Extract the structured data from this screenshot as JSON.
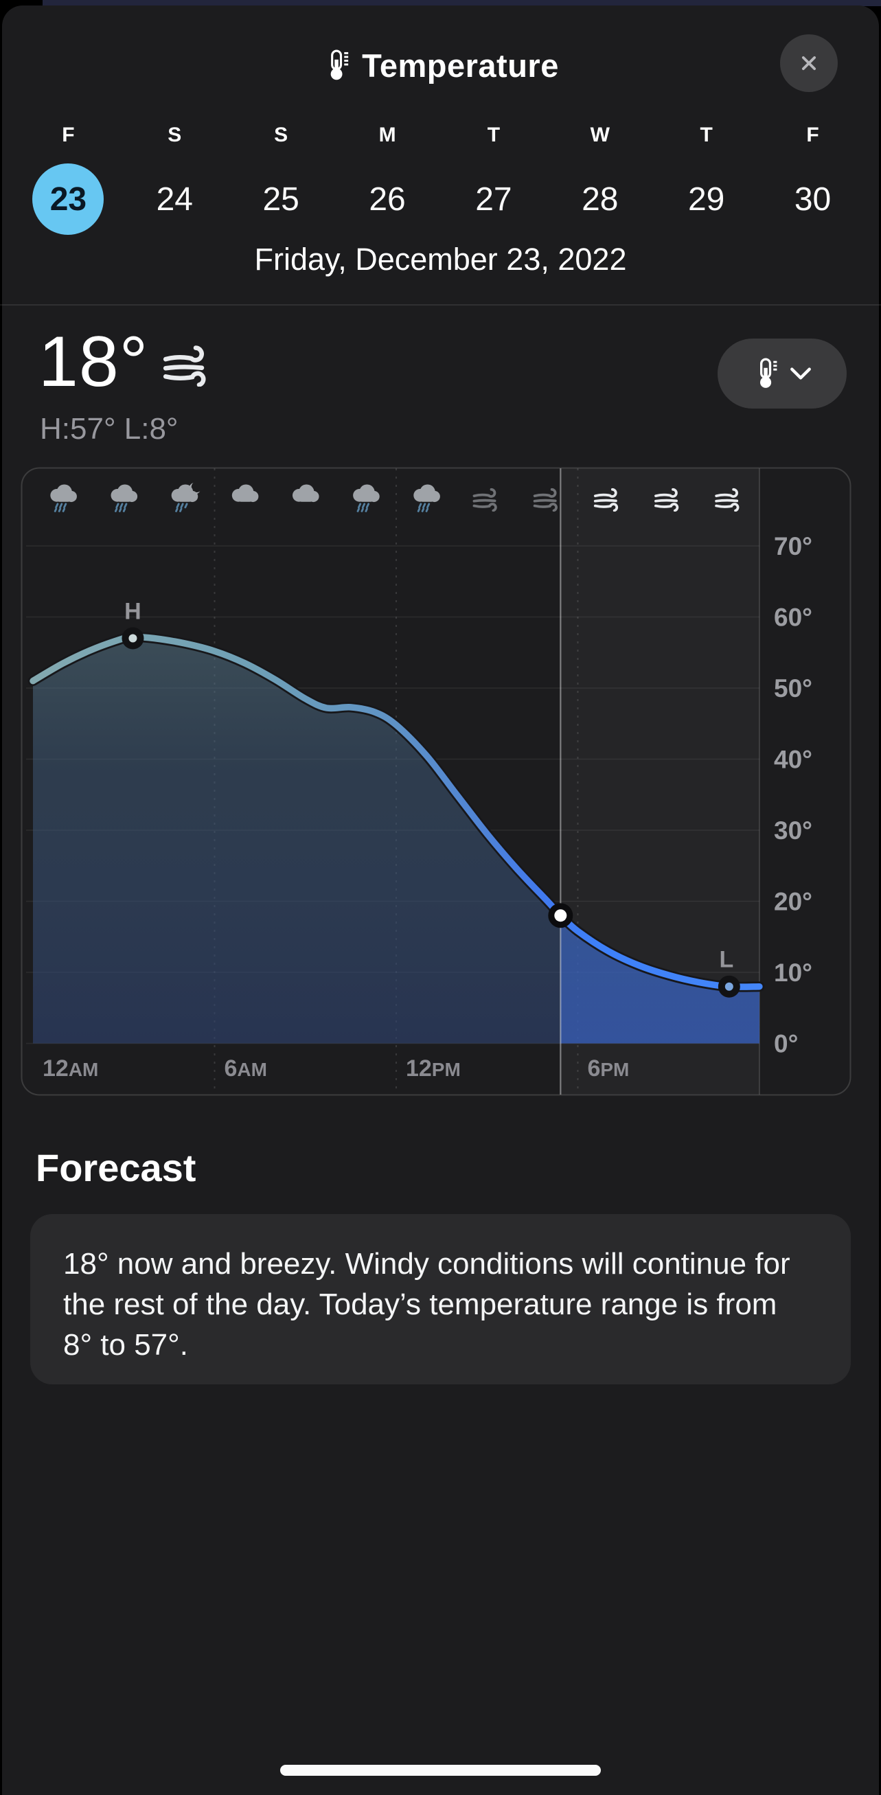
{
  "header": {
    "title": "Temperature"
  },
  "day_picker": {
    "days": [
      {
        "letter": "F",
        "date": "23",
        "selected": true
      },
      {
        "letter": "S",
        "date": "24",
        "selected": false
      },
      {
        "letter": "S",
        "date": "25",
        "selected": false
      },
      {
        "letter": "M",
        "date": "26",
        "selected": false
      },
      {
        "letter": "T",
        "date": "27",
        "selected": false
      },
      {
        "letter": "W",
        "date": "28",
        "selected": false
      },
      {
        "letter": "T",
        "date": "29",
        "selected": false
      },
      {
        "letter": "F",
        "date": "30",
        "selected": false
      }
    ],
    "selected_color": "#67c7f2"
  },
  "selected_date_label": "Friday, December 23, 2022",
  "current": {
    "temperature": "18°",
    "condition_icon": "wind",
    "high_low": "H:57° L:8°"
  },
  "chart_data": {
    "type": "area",
    "xlim_hours": [
      0,
      24
    ],
    "ylim": [
      0,
      70
    ],
    "grid": true,
    "legend_position": "none",
    "y_ticks": [
      {
        "value": 70,
        "label": "70°"
      },
      {
        "value": 60,
        "label": "60°"
      },
      {
        "value": 50,
        "label": "50°"
      },
      {
        "value": 40,
        "label": "40°"
      },
      {
        "value": 30,
        "label": "30°"
      },
      {
        "value": 20,
        "label": "20°"
      },
      {
        "value": 10,
        "label": "10°"
      },
      {
        "value": 0,
        "label": "0°"
      }
    ],
    "x_ticks": [
      {
        "hour": 0,
        "label": "12AM"
      },
      {
        "hour": 6,
        "label": "6AM"
      },
      {
        "hour": 12,
        "label": "12PM"
      },
      {
        "hour": 18,
        "label": "6PM"
      }
    ],
    "series": [
      {
        "name": "temperature",
        "points": [
          [
            0,
            51
          ],
          [
            1,
            53.5
          ],
          [
            2,
            55.5
          ],
          [
            3,
            57
          ],
          [
            3.3,
            57.2
          ],
          [
            4,
            57
          ],
          [
            5,
            56.3
          ],
          [
            6,
            55.2
          ],
          [
            7,
            53.5
          ],
          [
            8,
            51.2
          ],
          [
            9,
            48.5
          ],
          [
            9.7,
            47.2
          ],
          [
            10.5,
            47.3
          ],
          [
            11.3,
            46.6
          ],
          [
            12,
            44.8
          ],
          [
            13,
            40.5
          ],
          [
            14,
            35
          ],
          [
            15,
            29.5
          ],
          [
            16,
            24.5
          ],
          [
            17,
            20
          ],
          [
            17.43,
            18
          ],
          [
            18,
            15.8
          ],
          [
            19,
            13
          ],
          [
            20,
            11
          ],
          [
            21,
            9.6
          ],
          [
            22,
            8.6
          ],
          [
            23,
            8
          ],
          [
            24,
            8
          ]
        ]
      }
    ],
    "now_marker": {
      "hour": 17.43,
      "temp": 18
    },
    "high_marker": {
      "hour": 3.3,
      "temp": 57.2,
      "label": "H"
    },
    "low_marker": {
      "hour": 23,
      "temp": 8,
      "label": "L"
    },
    "condition_icons": [
      {
        "hour": 1,
        "icon": "cloud-rain"
      },
      {
        "hour": 3,
        "icon": "cloud-rain"
      },
      {
        "hour": 5,
        "icon": "cloud-moon-rain"
      },
      {
        "hour": 7,
        "icon": "cloud"
      },
      {
        "hour": 9,
        "icon": "cloud"
      },
      {
        "hour": 11,
        "icon": "cloud-rain"
      },
      {
        "hour": 13,
        "icon": "cloud-rain"
      },
      {
        "hour": 15,
        "icon": "wind",
        "dim": true
      },
      {
        "hour": 17,
        "icon": "wind",
        "dim": true
      },
      {
        "hour": 19,
        "icon": "wind",
        "dim": false
      },
      {
        "hour": 21,
        "icon": "wind",
        "dim": false
      },
      {
        "hour": 23,
        "icon": "wind",
        "dim": false
      }
    ],
    "colors": {
      "line_start": "#83a9b0",
      "line_mid": "#5e92c6",
      "line_end": "#4486f8",
      "now_line": "#8e8e93",
      "selected_day": "#67c7f2"
    }
  },
  "forecast": {
    "heading": "Forecast",
    "body": "18° now and breezy. Windy conditions will continue for the rest of the day. Today’s temperature range is from 8° to 57°."
  }
}
